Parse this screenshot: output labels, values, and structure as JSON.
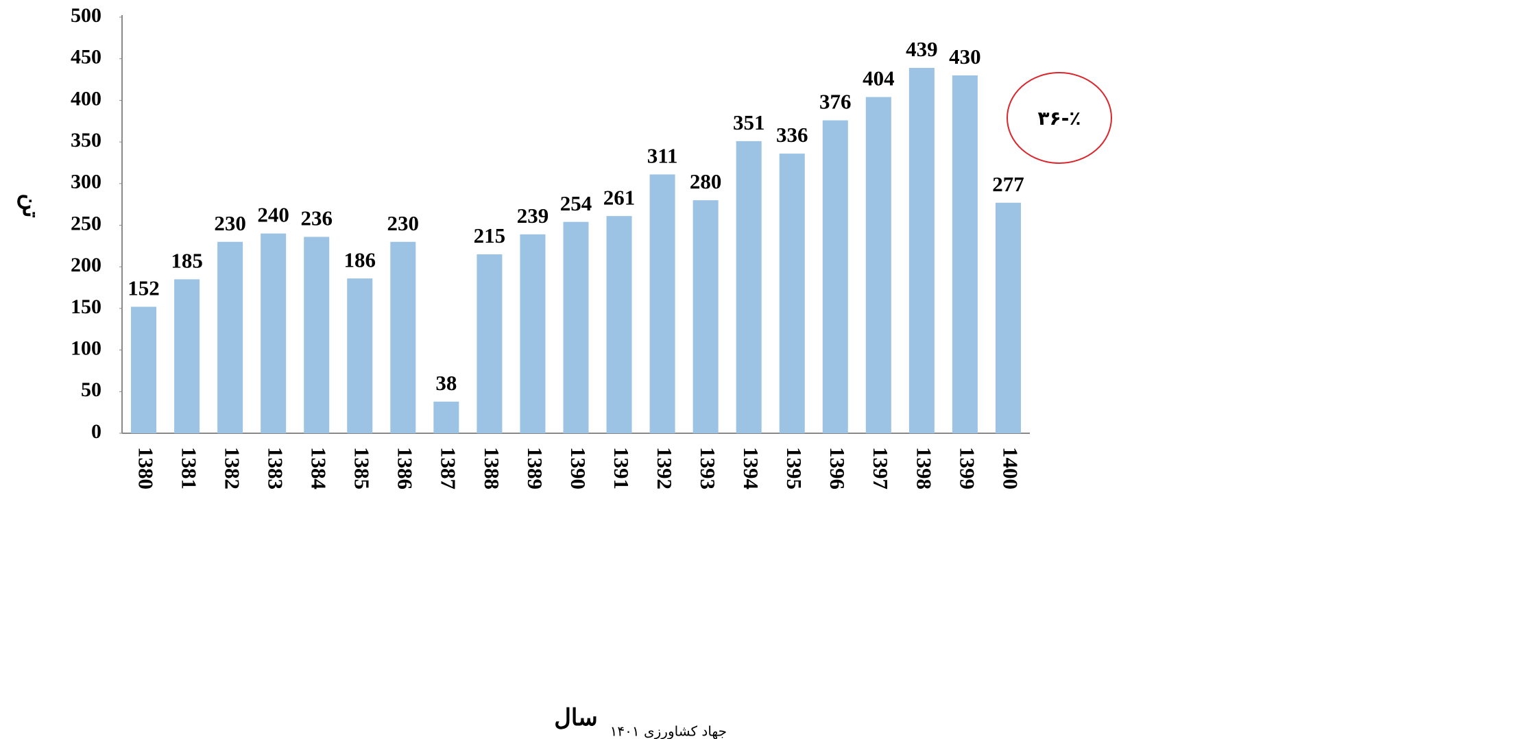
{
  "chart_data": {
    "type": "bar",
    "categories": [
      "1380",
      "1381",
      "1382",
      "1383",
      "1384",
      "1385",
      "1386",
      "1387",
      "1388",
      "1389",
      "1390",
      "1391",
      "1392",
      "1393",
      "1394",
      "1395",
      "1396",
      "1397",
      "1398",
      "1399",
      "1400"
    ],
    "values": [
      152,
      185,
      230,
      240,
      236,
      186,
      230,
      38,
      215,
      239,
      254,
      261,
      311,
      280,
      351,
      336,
      376,
      404,
      439,
      430,
      277
    ],
    "color": "#9cc3e3",
    "ylim": [
      0,
      500
    ],
    "yticks": [
      0,
      50,
      100,
      150,
      200,
      250,
      300,
      350,
      400,
      450,
      500
    ],
    "y_label": "تن",
    "x_label": "سال",
    "annotation": "٪-۳۶",
    "source": "جهاد کشاورزی ۱۴۰۱"
  }
}
